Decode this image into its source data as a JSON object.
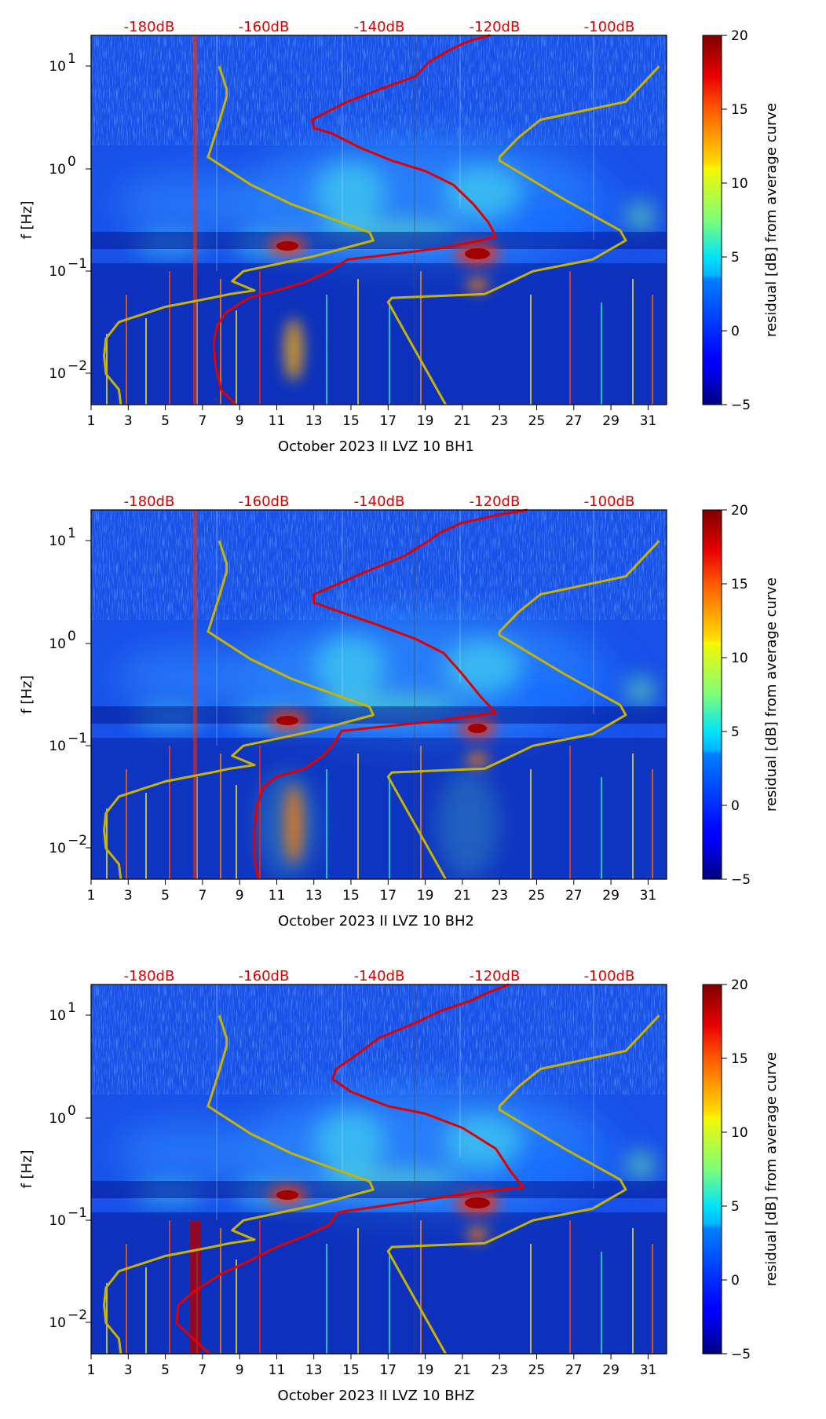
{
  "chart_data": [
    {
      "type": "heatmap",
      "xlabel": "October 2023 II LVZ 10 BH1",
      "ylabel": "f [Hz]",
      "colorbar_label": "residual [dB] from average curve",
      "x_ticks": [
        "1",
        "3",
        "5",
        "7",
        "9",
        "11",
        "13",
        "15",
        "17",
        "19",
        "21",
        "23",
        "25",
        "27",
        "29",
        "31"
      ],
      "y_ticks": [
        "10^1",
        "10^0",
        "10^-1",
        "10^-2"
      ],
      "db_ticks": [
        "-180dB",
        "-160dB",
        "-140dB",
        "-120dB",
        "-100dB"
      ],
      "colorbar_ticks": [
        "20",
        "15",
        "10",
        "5",
        "0",
        "−5"
      ],
      "xlim": [
        1,
        32
      ],
      "ylim": [
        0.005,
        20
      ],
      "clim": [
        -5,
        20
      ],
      "colormap": "jet",
      "series": [
        {
          "name": "average PSD",
          "color": "#e00000",
          "points": [
            [
              8.8,
              0.005
            ],
            [
              8.0,
              0.007
            ],
            [
              7.7,
              0.012
            ],
            [
              7.6,
              0.02
            ],
            [
              7.8,
              0.03
            ],
            [
              8.3,
              0.04
            ],
            [
              9.5,
              0.055
            ],
            [
              11.0,
              0.065
            ],
            [
              12.5,
              0.078
            ],
            [
              13.8,
              0.1
            ],
            [
              14.8,
              0.13
            ],
            [
              17.0,
              0.145
            ],
            [
              20.0,
              0.17
            ],
            [
              22.0,
              0.2
            ],
            [
              22.8,
              0.22
            ],
            [
              22.4,
              0.3
            ],
            [
              21.6,
              0.45
            ],
            [
              20.5,
              0.7
            ],
            [
              19.0,
              0.95
            ],
            [
              17.2,
              1.2
            ],
            [
              15.5,
              1.6
            ],
            [
              14.0,
              2.2
            ],
            [
              13.0,
              2.5
            ],
            [
              12.9,
              3.0
            ],
            [
              13.6,
              3.5
            ],
            [
              14.8,
              4.5
            ],
            [
              16.6,
              6.0
            ],
            [
              18.5,
              8.0
            ],
            [
              19.2,
              11.0
            ],
            [
              20.2,
              14.0
            ],
            [
              21.0,
              16.5
            ],
            [
              21.5,
              18.0
            ],
            [
              22.5,
              20
            ]
          ]
        },
        {
          "name": "low model",
          "color": "#c8b400",
          "points": [
            [
              2.6,
              0.005
            ],
            [
              2.5,
              0.007
            ],
            [
              1.8,
              0.01
            ],
            [
              1.7,
              0.015
            ],
            [
              1.8,
              0.022
            ],
            [
              2.5,
              0.032
            ],
            [
              5.0,
              0.045
            ],
            [
              7.5,
              0.055
            ],
            [
              8.5,
              0.06
            ],
            [
              9.8,
              0.065
            ],
            [
              8.6,
              0.08
            ],
            [
              9.2,
              0.1
            ],
            [
              13.0,
              0.14
            ],
            [
              16.2,
              0.2
            ],
            [
              16.0,
              0.24
            ],
            [
              14.5,
              0.3
            ],
            [
              11.8,
              0.45
            ],
            [
              9.6,
              0.7
            ],
            [
              7.3,
              1.3
            ],
            [
              7.8,
              2.5
            ],
            [
              8.3,
              5.0
            ],
            [
              8.3,
              6.0
            ],
            [
              7.9,
              10.0
            ]
          ]
        },
        {
          "name": "high model",
          "color": "#c8b400",
          "points": [
            [
              20.1,
              0.005
            ],
            [
              17.0,
              0.05
            ],
            [
              17.2,
              0.055
            ],
            [
              22.2,
              0.06
            ],
            [
              23.0,
              0.07
            ],
            [
              24.8,
              0.1
            ],
            [
              28.0,
              0.13
            ],
            [
              29.8,
              0.2
            ],
            [
              29.5,
              0.25
            ],
            [
              26.5,
              0.5
            ],
            [
              23.0,
              1.2
            ],
            [
              23.0,
              1.3
            ],
            [
              24.0,
              2.0
            ],
            [
              25.2,
              3.0
            ],
            [
              29.8,
              4.5
            ],
            [
              31.6,
              10.0
            ]
          ]
        }
      ]
    },
    {
      "type": "heatmap",
      "xlabel": "October 2023 II LVZ 10 BH2",
      "ylabel": "f [Hz]",
      "colorbar_label": "residual [dB] from average curve",
      "x_ticks": [
        "1",
        "3",
        "5",
        "7",
        "9",
        "11",
        "13",
        "15",
        "17",
        "19",
        "21",
        "23",
        "25",
        "27",
        "29",
        "31"
      ],
      "y_ticks": [
        "10^1",
        "10^0",
        "10^-1",
        "10^-2"
      ],
      "db_ticks": [
        "-180dB",
        "-160dB",
        "-140dB",
        "-120dB",
        "-100dB"
      ],
      "colorbar_ticks": [
        "20",
        "15",
        "10",
        "5",
        "0",
        "−5"
      ],
      "xlim": [
        1,
        32
      ],
      "ylim": [
        0.005,
        20
      ],
      "clim": [
        -5,
        20
      ],
      "colormap": "jet",
      "series": [
        {
          "name": "average PSD",
          "color": "#e00000",
          "points": [
            [
              10.0,
              0.005
            ],
            [
              9.8,
              0.008
            ],
            [
              9.8,
              0.015
            ],
            [
              9.9,
              0.025
            ],
            [
              10.3,
              0.04
            ],
            [
              11.0,
              0.05
            ],
            [
              12.5,
              0.06
            ],
            [
              13.5,
              0.08
            ],
            [
              14.0,
              0.1
            ],
            [
              14.5,
              0.14
            ],
            [
              19.0,
              0.17
            ],
            [
              22.0,
              0.2
            ],
            [
              22.8,
              0.21
            ],
            [
              22.0,
              0.3
            ],
            [
              21.0,
              0.5
            ],
            [
              20.0,
              0.8
            ],
            [
              18.5,
              1.1
            ],
            [
              16.5,
              1.5
            ],
            [
              14.5,
              2.0
            ],
            [
              13.0,
              2.5
            ],
            [
              13.0,
              3.0
            ],
            [
              14.0,
              3.6
            ],
            [
              15.8,
              5.0
            ],
            [
              17.8,
              7.0
            ],
            [
              19.0,
              9.5
            ],
            [
              19.8,
              12.0
            ],
            [
              21.0,
              15.0
            ],
            [
              23.0,
              18.0
            ],
            [
              24.5,
              20
            ]
          ]
        },
        {
          "name": "low model",
          "color": "#c8b400",
          "points": [
            [
              2.6,
              0.005
            ],
            [
              2.5,
              0.007
            ],
            [
              1.8,
              0.01
            ],
            [
              1.7,
              0.015
            ],
            [
              1.8,
              0.022
            ],
            [
              2.5,
              0.032
            ],
            [
              5.0,
              0.045
            ],
            [
              7.5,
              0.055
            ],
            [
              8.5,
              0.06
            ],
            [
              9.8,
              0.065
            ],
            [
              8.6,
              0.08
            ],
            [
              9.2,
              0.1
            ],
            [
              13.0,
              0.14
            ],
            [
              16.2,
              0.2
            ],
            [
              16.0,
              0.24
            ],
            [
              14.5,
              0.3
            ],
            [
              11.8,
              0.45
            ],
            [
              9.6,
              0.7
            ],
            [
              7.3,
              1.3
            ],
            [
              7.8,
              2.5
            ],
            [
              8.3,
              5.0
            ],
            [
              8.3,
              6.0
            ],
            [
              7.9,
              10.0
            ]
          ]
        },
        {
          "name": "high model",
          "color": "#c8b400",
          "points": [
            [
              20.1,
              0.005
            ],
            [
              17.0,
              0.05
            ],
            [
              17.2,
              0.055
            ],
            [
              22.2,
              0.06
            ],
            [
              23.0,
              0.07
            ],
            [
              24.8,
              0.1
            ],
            [
              28.0,
              0.13
            ],
            [
              29.8,
              0.2
            ],
            [
              29.5,
              0.25
            ],
            [
              26.5,
              0.5
            ],
            [
              23.0,
              1.2
            ],
            [
              23.0,
              1.3
            ],
            [
              24.0,
              2.0
            ],
            [
              25.2,
              3.0
            ],
            [
              29.8,
              4.5
            ],
            [
              31.6,
              10.0
            ]
          ]
        }
      ]
    },
    {
      "type": "heatmap",
      "xlabel": "October 2023 II LVZ 10 BHZ",
      "ylabel": "f [Hz]",
      "colorbar_label": "residual [dB] from average curve",
      "x_ticks": [
        "1",
        "3",
        "5",
        "7",
        "9",
        "11",
        "13",
        "15",
        "17",
        "19",
        "21",
        "23",
        "25",
        "27",
        "29",
        "31"
      ],
      "y_ticks": [
        "10^1",
        "10^0",
        "10^-1",
        "10^-2"
      ],
      "db_ticks": [
        "-180dB",
        "-160dB",
        "-140dB",
        "-120dB",
        "-100dB"
      ],
      "colorbar_ticks": [
        "20",
        "15",
        "10",
        "5",
        "0",
        "−5"
      ],
      "xlim": [
        1,
        32
      ],
      "ylim": [
        0.005,
        20
      ],
      "clim": [
        -5,
        20
      ],
      "colormap": "jet",
      "series": [
        {
          "name": "average PSD",
          "color": "#e00000",
          "points": [
            [
              7.4,
              0.005
            ],
            [
              6.5,
              0.007
            ],
            [
              5.6,
              0.01
            ],
            [
              5.7,
              0.015
            ],
            [
              6.5,
              0.02
            ],
            [
              8.0,
              0.03
            ],
            [
              9.5,
              0.04
            ],
            [
              11.0,
              0.055
            ],
            [
              12.5,
              0.07
            ],
            [
              13.8,
              0.09
            ],
            [
              14.3,
              0.12
            ],
            [
              18.0,
              0.15
            ],
            [
              22.0,
              0.19
            ],
            [
              24.3,
              0.21
            ],
            [
              23.6,
              0.3
            ],
            [
              22.8,
              0.5
            ],
            [
              21.0,
              0.8
            ],
            [
              19.0,
              1.1
            ],
            [
              17.0,
              1.3
            ],
            [
              15.0,
              1.8
            ],
            [
              14.0,
              2.4
            ],
            [
              14.2,
              3.0
            ],
            [
              15.2,
              4.0
            ],
            [
              16.5,
              6.0
            ],
            [
              18.5,
              8.5
            ],
            [
              19.8,
              11.0
            ],
            [
              21.5,
              14.0
            ],
            [
              22.5,
              17.0
            ],
            [
              23.5,
              20
            ]
          ]
        },
        {
          "name": "low model",
          "color": "#c8b400",
          "points": [
            [
              2.6,
              0.005
            ],
            [
              2.5,
              0.007
            ],
            [
              1.8,
              0.01
            ],
            [
              1.7,
              0.015
            ],
            [
              1.8,
              0.022
            ],
            [
              2.5,
              0.032
            ],
            [
              5.0,
              0.045
            ],
            [
              7.5,
              0.055
            ],
            [
              8.5,
              0.06
            ],
            [
              9.8,
              0.065
            ],
            [
              8.6,
              0.08
            ],
            [
              9.2,
              0.1
            ],
            [
              13.0,
              0.14
            ],
            [
              16.2,
              0.2
            ],
            [
              16.0,
              0.24
            ],
            [
              14.5,
              0.3
            ],
            [
              11.8,
              0.45
            ],
            [
              9.6,
              0.7
            ],
            [
              7.3,
              1.3
            ],
            [
              7.8,
              2.5
            ],
            [
              8.3,
              5.0
            ],
            [
              8.3,
              6.0
            ],
            [
              7.9,
              10.0
            ]
          ]
        },
        {
          "name": "high model",
          "color": "#c8b400",
          "points": [
            [
              20.1,
              0.005
            ],
            [
              17.0,
              0.05
            ],
            [
              17.2,
              0.055
            ],
            [
              22.2,
              0.06
            ],
            [
              23.0,
              0.07
            ],
            [
              24.8,
              0.1
            ],
            [
              28.0,
              0.13
            ],
            [
              29.8,
              0.2
            ],
            [
              29.5,
              0.25
            ],
            [
              26.5,
              0.5
            ],
            [
              23.0,
              1.2
            ],
            [
              23.0,
              1.3
            ],
            [
              24.0,
              2.0
            ],
            [
              25.2,
              3.0
            ],
            [
              29.8,
              4.5
            ],
            [
              31.6,
              10.0
            ]
          ]
        }
      ]
    }
  ]
}
